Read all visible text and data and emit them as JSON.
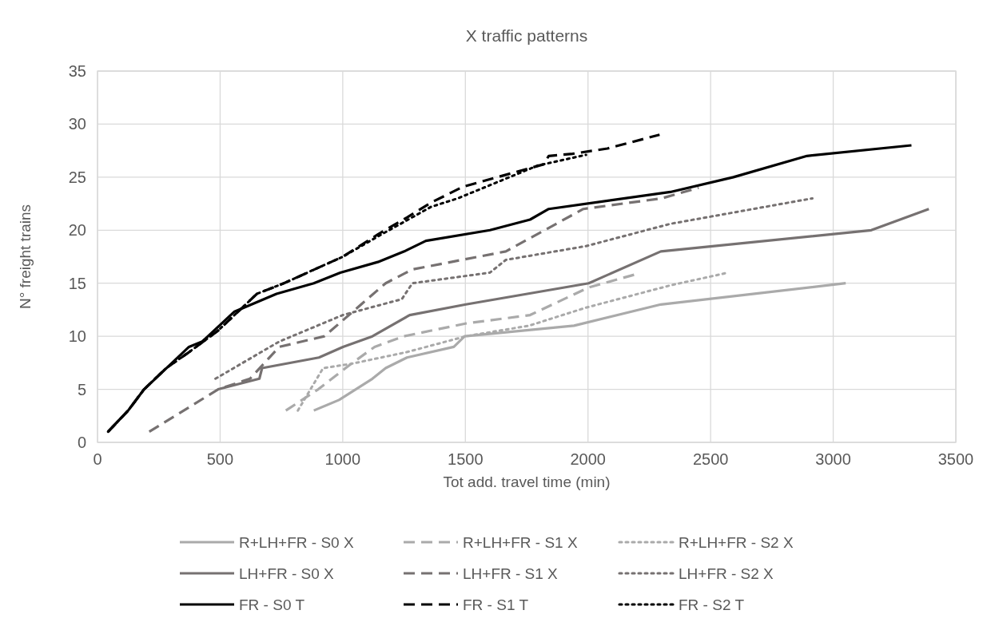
{
  "chart_data": {
    "type": "line",
    "title": "X traffic patterns",
    "xlabel": "Tot add. travel time (min)",
    "ylabel": "N° freight trains",
    "xlim": [
      0,
      3500
    ],
    "xticks": [
      0,
      500,
      1000,
      1500,
      2000,
      2500,
      3000,
      3500
    ],
    "ylim": [
      0,
      35
    ],
    "yticks": [
      0,
      5,
      10,
      15,
      20,
      25,
      30,
      35
    ],
    "grid": true,
    "legend": "bottom",
    "marker": "none",
    "series": [
      {
        "name": "R+LH+FR - S0 X",
        "color": "#aaaaaa",
        "line_style": "solid",
        "x": [
          882,
          985,
          1121,
          1175,
          1262,
          1453,
          1497,
          1943,
          2297,
          3051
        ],
        "values": [
          3,
          4,
          6,
          7,
          8,
          9,
          10,
          11,
          13,
          15
        ]
      },
      {
        "name": "R+LH+FR - S1 X",
        "color": "#aaaaaa",
        "line_style": "dashed",
        "x": [
          768,
          900,
          1034,
          1130,
          1250,
          1500,
          1764,
          2003,
          2188
        ],
        "values": [
          3,
          5,
          7.4,
          9,
          10,
          11.2,
          12,
          14.6,
          15.8
        ]
      },
      {
        "name": "R+LH+FR - S2 X",
        "color": "#aaaaaa",
        "line_style": "dotted",
        "x": [
          817,
          920,
          1034,
          1260,
          1502,
          1760,
          1992,
          2336,
          2571
        ],
        "values": [
          3,
          7,
          7.4,
          8.5,
          10,
          11,
          12.7,
          14.8,
          16
        ]
      },
      {
        "name": "LH+FR - S0 X",
        "color": "#767171",
        "line_style": "solid",
        "x": [
          492,
          660,
          671,
          903,
          1001,
          1121,
          1273,
          1502,
          2003,
          2297,
          3155,
          3390
        ],
        "values": [
          5,
          6,
          7,
          8,
          9,
          10,
          12,
          13,
          15,
          18,
          20,
          22
        ]
      },
      {
        "name": "LH+FR - S1 X",
        "color": "#767171",
        "line_style": "dashed",
        "x": [
          211,
          492,
          622,
          741,
          925,
          1175,
          1284,
          1665,
          1981,
          2300,
          2451
        ],
        "values": [
          1,
          5,
          6,
          9,
          10,
          15,
          16.3,
          18,
          22,
          23,
          24
        ]
      },
      {
        "name": "LH+FR - S2 X",
        "color": "#767171",
        "line_style": "dotted",
        "x": [
          481,
          741,
          1000,
          1241,
          1284,
          1600,
          1665,
          1992,
          2336,
          2915
        ],
        "values": [
          6,
          9.5,
          12,
          13.5,
          15,
          16,
          17.2,
          18.5,
          20.6,
          23
        ]
      },
      {
        "name": "FR - S0 T",
        "color": "#000000",
        "line_style": "solid",
        "x": [
          43,
          125,
          190,
          373,
          427,
          557,
          730,
          882,
          990,
          1143,
          1251,
          1339,
          1600,
          1764,
          1840,
          2336,
          2593,
          2893,
          3319
        ],
        "values": [
          1,
          3,
          5,
          9,
          9.5,
          12.3,
          14,
          15,
          16,
          17,
          18,
          19,
          20,
          21,
          22,
          23.6,
          25,
          27,
          28
        ]
      },
      {
        "name": "FR - S1 T",
        "color": "#000000",
        "line_style": "dashed",
        "x": [
          43,
          125,
          190,
          280,
          373,
          490,
          650,
          760,
          1000,
          1143,
          1262,
          1360,
          1491,
          1818,
          1840,
          1937,
          2079,
          2292
        ],
        "values": [
          1,
          3,
          5,
          7,
          8.5,
          10.5,
          14,
          15,
          17.5,
          19.6,
          21.2,
          22.6,
          24.1,
          26.2,
          27,
          27.2,
          27.7,
          29
        ]
      },
      {
        "name": "FR - S2 T",
        "color": "#000000",
        "line_style": "dotted",
        "x": [
          43,
          125,
          190,
          280,
          373,
          490,
          650,
          760,
          1000,
          1150,
          1360,
          1469,
          1796,
          1992
        ],
        "values": [
          1,
          3,
          5,
          7,
          8.5,
          10.5,
          14,
          15,
          17.5,
          19.5,
          22.2,
          23,
          26.1,
          27.1
        ]
      }
    ]
  }
}
